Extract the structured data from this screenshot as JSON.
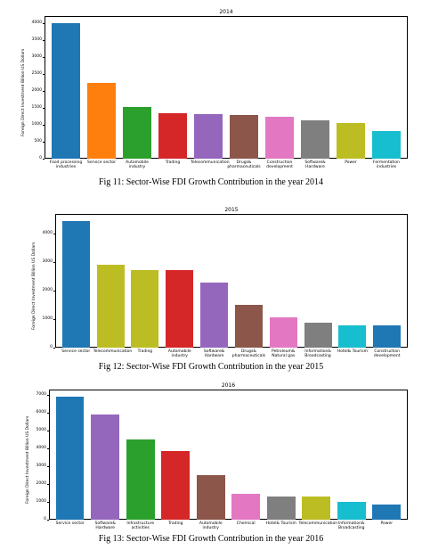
{
  "chart_data": [
    {
      "type": "bar",
      "title": "2014",
      "ylabel": "Foreign Direct Investment Billion US Dollars",
      "caption": "Fig 11: Sector-Wise FDI Growth Contribution in the year 2014",
      "categories": [
        "Food processing industries",
        "Service sector",
        "Automobile industry",
        "Trading",
        "Telecommunication",
        "Drugs& pharmaceuticals",
        "Construction development",
        "Software& Hardware",
        "Power",
        "Fermentation industries"
      ],
      "values": [
        3980,
        2220,
        1510,
        1350,
        1310,
        1280,
        1230,
        1130,
        1060,
        810
      ],
      "colors": [
        "#1f77b4",
        "#ff7f0e",
        "#2ca02c",
        "#d62728",
        "#9467bd",
        "#8c564b",
        "#e377c2",
        "#7f7f7f",
        "#bcbd22",
        "#17becf"
      ],
      "ylim": [
        0,
        4200
      ],
      "yticks": [
        0,
        500,
        1000,
        1500,
        2000,
        2500,
        3000,
        3500,
        4000
      ]
    },
    {
      "type": "bar",
      "title": "2015",
      "ylabel": "Foreign Direct Investment Billion US Dollars",
      "caption": "Fig 12: Sector-Wise FDI Growth Contribution in the year 2015",
      "categories": [
        "Service sector",
        "Telecommunication",
        "Trading",
        "Automobile industry",
        "Software& Hardware",
        "Drugs& pharmaceuticals",
        "Petroleum& Natural gas",
        "Information& Broadcasting",
        "Hotel& Tourism",
        "Construction development"
      ],
      "values": [
        4440,
        2900,
        2730,
        2730,
        2300,
        1500,
        1080,
        880,
        780,
        770
      ],
      "colors": [
        "#1f77b4",
        "#bcbd22",
        "#bcbd22",
        "#d62728",
        "#9467bd",
        "#8c564b",
        "#e377c2",
        "#7f7f7f",
        "#17becf",
        "#1f77b4"
      ],
      "ylim": [
        0,
        4700
      ],
      "yticks": [
        0,
        1000,
        2000,
        3000,
        4000
      ]
    },
    {
      "type": "bar",
      "title": "2016",
      "ylabel": "Foreign Direct Investment Billion US Dollars",
      "caption": "Fig 13: Sector-Wise FDI Growth Contribution in the year 2016",
      "categories": [
        "Service sector",
        "Software& Hardware",
        "Infrastructure activities",
        "Trading",
        "Automobile industry",
        "Chemical",
        "Hotel& Tourism",
        "Telecommunication",
        "Information& Broadcasting",
        "Power"
      ],
      "values": [
        6890,
        5900,
        4500,
        3850,
        2520,
        1460,
        1310,
        1300,
        1000,
        840
      ],
      "colors": [
        "#1f77b4",
        "#9467bd",
        "#2ca02c",
        "#d62728",
        "#8c564b",
        "#e377c2",
        "#7f7f7f",
        "#bcbd22",
        "#17becf",
        "#1f77b4"
      ],
      "ylim": [
        0,
        7300
      ],
      "yticks": [
        0,
        1000,
        2000,
        3000,
        4000,
        5000,
        6000,
        7000
      ]
    }
  ]
}
